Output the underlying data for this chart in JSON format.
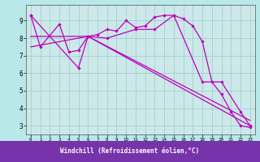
{
  "xlabel": "Windchill (Refroidissement éolien,°C)",
  "bg_color": "#b8e8e8",
  "line_color": "#bb00bb",
  "grid_color": "#99cccc",
  "axis_bg": "#cce8e8",
  "label_bg": "#7733aa",
  "xlim": [
    -0.5,
    23.5
  ],
  "ylim": [
    2.5,
    9.9
  ],
  "xticks": [
    0,
    1,
    2,
    3,
    4,
    5,
    6,
    7,
    8,
    9,
    10,
    11,
    12,
    13,
    14,
    15,
    16,
    17,
    18,
    19,
    20,
    21,
    22,
    23
  ],
  "yticks": [
    3,
    4,
    5,
    6,
    7,
    8,
    9
  ],
  "series1_x": [
    0,
    1,
    3,
    4,
    5,
    6,
    7,
    8,
    9,
    10,
    11,
    12,
    13,
    14,
    15,
    16,
    17,
    18,
    19,
    20,
    21,
    22,
    23
  ],
  "series1_y": [
    9.3,
    7.5,
    8.8,
    7.2,
    7.3,
    8.1,
    8.2,
    8.5,
    8.4,
    9.0,
    8.6,
    8.7,
    9.2,
    9.3,
    9.3,
    9.1,
    8.7,
    7.8,
    5.5,
    4.8,
    3.8,
    3.0,
    2.9
  ],
  "series2_x": [
    0,
    5,
    6,
    8,
    11,
    13,
    15,
    18,
    20,
    22,
    23
  ],
  "series2_y": [
    9.3,
    6.3,
    8.1,
    8.0,
    8.5,
    8.5,
    9.3,
    5.5,
    5.5,
    3.8,
    3.0
  ],
  "series3_x": [
    0,
    6,
    23
  ],
  "series3_y": [
    7.5,
    8.1,
    3.0
  ],
  "series4_x": [
    0,
    6,
    23
  ],
  "series4_y": [
    8.1,
    8.1,
    3.3
  ]
}
